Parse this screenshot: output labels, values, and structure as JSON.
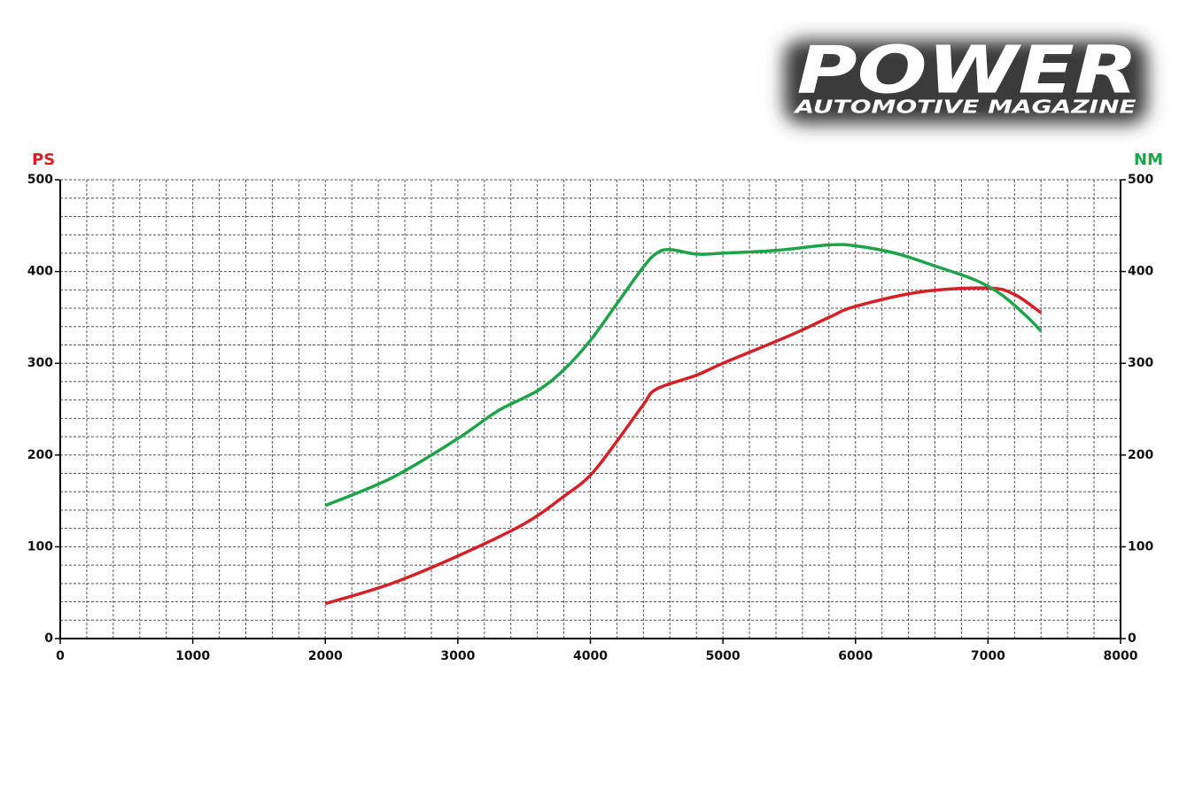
{
  "logo": {
    "title": "POWER",
    "subtitle": "AUTOMOTIVE MAGAZINE"
  },
  "chart_data": {
    "type": "line",
    "ylabel": "PS",
    "y2label": "NM",
    "xlim": [
      0,
      8000
    ],
    "xticks": [
      0,
      1000,
      2000,
      3000,
      4000,
      5000,
      6000,
      7000,
      8000
    ],
    "ylim": [
      0,
      500
    ],
    "yticks": [
      0,
      100,
      200,
      300,
      400,
      500
    ],
    "y2lim": [
      0,
      500
    ],
    "y2ticks": [
      0,
      100,
      200,
      300,
      400,
      500
    ],
    "grid": true,
    "series": [
      {
        "color": "#d42027",
        "axis": "y",
        "x": [
          2000,
          2500,
          3000,
          3500,
          3800,
          4000,
          4200,
          4400,
          4500,
          4800,
          5000,
          5500,
          5800,
          6000,
          6500,
          7000,
          7200,
          7400
        ],
        "values": [
          38,
          60,
          90,
          125,
          155,
          178,
          215,
          255,
          272,
          287,
          300,
          330,
          350,
          362,
          378,
          382,
          375,
          355
        ]
      },
      {
        "color": "#1ea24a",
        "axis": "y2",
        "x": [
          2000,
          2500,
          3000,
          3300,
          3600,
          3800,
          4000,
          4200,
          4400,
          4500,
          4600,
          4800,
          5000,
          5400,
          5800,
          6000,
          6300,
          6600,
          6900,
          7100,
          7300,
          7400
        ],
        "values": [
          145,
          175,
          218,
          248,
          270,
          293,
          325,
          365,
          405,
          420,
          424,
          419,
          420,
          423,
          429,
          428,
          420,
          406,
          391,
          375,
          350,
          335
        ]
      }
    ]
  }
}
